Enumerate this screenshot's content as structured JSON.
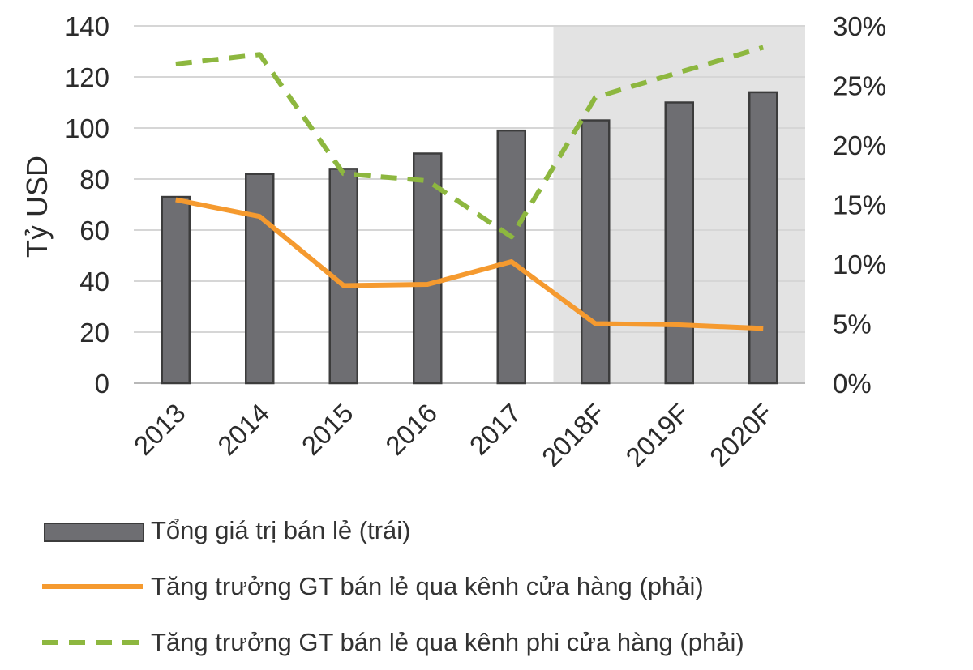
{
  "chart_data": {
    "type": "bar+line",
    "categories": [
      "2013",
      "2014",
      "2015",
      "2016",
      "2017",
      "2018F",
      "2019F",
      "2020F"
    ],
    "forecast_shading_from": "2018F",
    "y_left": {
      "label": "Tỷ USD",
      "ylim": [
        0,
        140
      ],
      "ticks": [
        "0",
        "20",
        "40",
        "60",
        "80",
        "100",
        "120",
        "140"
      ]
    },
    "y_right": {
      "label": "",
      "ylim": [
        0,
        30
      ],
      "ticks": [
        "0%",
        "5%",
        "10%",
        "15%",
        "20%",
        "25%",
        "30%"
      ]
    },
    "grid": true,
    "legend_position": "bottom",
    "series": [
      {
        "name": "Tổng giá trị bán lẻ (trái)",
        "type": "bar",
        "axis": "left",
        "color": "#6e6e72",
        "values": [
          73,
          82,
          84,
          90,
          99,
          103,
          110,
          114
        ]
      },
      {
        "name": "Tăng trưởng GT bán lẻ qua kênh cửa hàng (phải)",
        "type": "line",
        "axis": "right",
        "color": "#f59a2f",
        "values": [
          15.4,
          14.0,
          8.2,
          8.3,
          10.2,
          5.0,
          4.9,
          4.6
        ]
      },
      {
        "name": "Tăng trưởng GT bán lẻ qua kênh phi cửa hàng (phải)",
        "type": "line",
        "style": "dashed",
        "axis": "right",
        "color": "#8db73f",
        "values": [
          26.8,
          27.6,
          17.6,
          17.0,
          12.3,
          24.0,
          26.1,
          28.2
        ]
      }
    ]
  }
}
